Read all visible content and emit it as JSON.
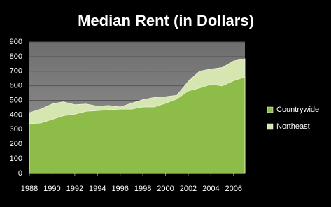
{
  "chart_data": {
    "type": "area",
    "title": "Median Rent (in Dollars)",
    "x": [
      1988,
      1989,
      1990,
      1991,
      1992,
      1993,
      1994,
      1995,
      1996,
      1997,
      1998,
      1999,
      2000,
      2001,
      2002,
      2003,
      2004,
      2005,
      2006,
      2007
    ],
    "series": [
      {
        "name": "Northeast",
        "color": "#d5e6b0",
        "values": [
          415,
          440,
          475,
          490,
          470,
          475,
          460,
          465,
          455,
          480,
          505,
          520,
          525,
          535,
          630,
          700,
          715,
          725,
          770,
          785
        ]
      },
      {
        "name": "Countrywide",
        "color": "#8dbd48",
        "values": [
          340,
          345,
          370,
          395,
          405,
          425,
          430,
          435,
          440,
          440,
          455,
          455,
          480,
          510,
          565,
          585,
          610,
          600,
          635,
          660
        ]
      }
    ],
    "xlim": [
      1988,
      2007
    ],
    "xticks": [
      1988,
      1990,
      1992,
      1994,
      1996,
      1998,
      2000,
      2002,
      2004,
      2006
    ],
    "ylim": [
      0,
      900
    ],
    "yticks": [
      0,
      100,
      200,
      300,
      400,
      500,
      600,
      700,
      800,
      900
    ],
    "grid": true,
    "legend": "right"
  }
}
